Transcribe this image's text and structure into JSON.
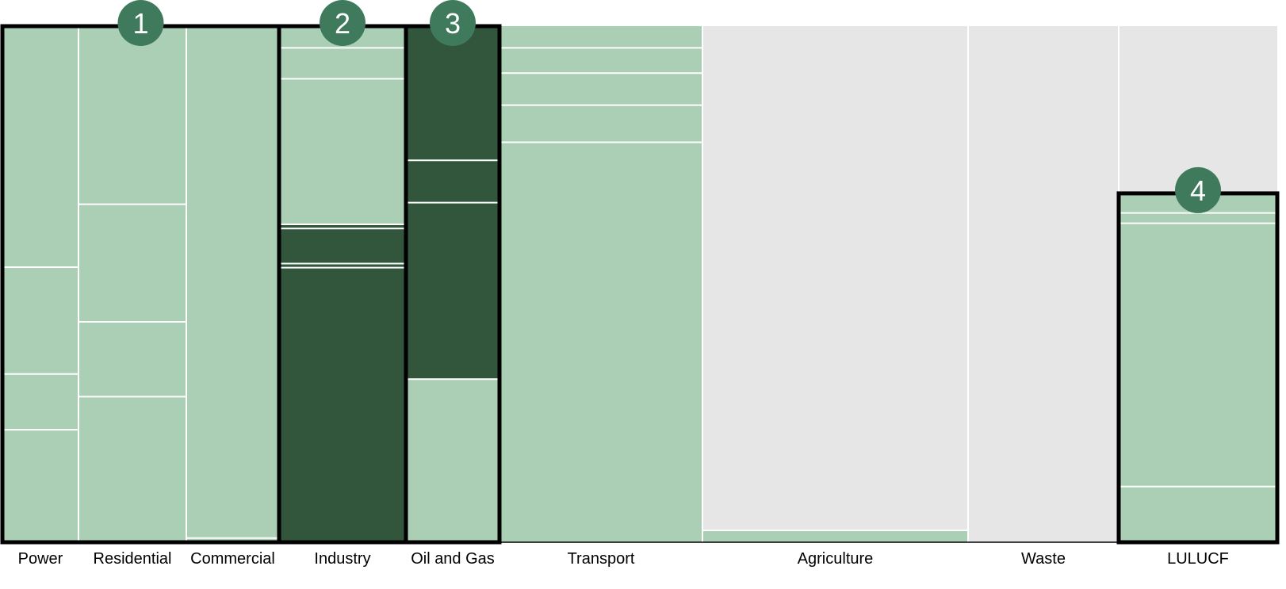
{
  "chart_data": {
    "type": "bar",
    "subtype": "marimekko-stacked",
    "title": "",
    "xlabel": "",
    "ylabel": "",
    "ylim": [
      0,
      1
    ],
    "colors": {
      "light": "#abcfb5",
      "dark": "#32563c",
      "grey": "#e6e6e6",
      "divider": "#ffffff",
      "highlight_border": "#000000",
      "badge": "#3f7a5c"
    },
    "categories": [
      {
        "name": "Power",
        "width": 96,
        "segments": [
          {
            "value": 0.218,
            "shade": "light"
          },
          {
            "value": 0.108,
            "shade": "light"
          },
          {
            "value": 0.207,
            "shade": "light"
          },
          {
            "value": 0.467,
            "shade": "light"
          }
        ]
      },
      {
        "name": "Residential",
        "width": 136,
        "segments": [
          {
            "value": 0.282,
            "shade": "light"
          },
          {
            "value": 0.145,
            "shade": "light"
          },
          {
            "value": 0.228,
            "shade": "light"
          },
          {
            "value": 0.345,
            "shade": "light"
          }
        ]
      },
      {
        "name": "Commercial",
        "width": 117,
        "segments": [
          {
            "value": 0.008,
            "shade": "light"
          },
          {
            "value": 0.992,
            "shade": "light"
          }
        ]
      },
      {
        "name": "Industry",
        "width": 160,
        "segments": [
          {
            "value": 0.532,
            "shade": "dark"
          },
          {
            "value": 0.008,
            "shade": "dark"
          },
          {
            "value": 0.068,
            "shade": "dark"
          },
          {
            "value": 0.008,
            "shade": "dark"
          },
          {
            "value": 0.282,
            "shade": "light"
          },
          {
            "value": 0.06,
            "shade": "light"
          },
          {
            "value": 0.042,
            "shade": "light"
          }
        ]
      },
      {
        "name": "Oil and Gas",
        "width": 118,
        "segments": [
          {
            "value": 0.316,
            "shade": "light"
          },
          {
            "value": 0.342,
            "shade": "dark"
          },
          {
            "value": 0.082,
            "shade": "dark"
          },
          {
            "value": 0.26,
            "shade": "dark"
          }
        ]
      },
      {
        "name": "Transport",
        "width": 256,
        "segments": [
          {
            "value": 0.775,
            "shade": "light"
          },
          {
            "value": 0.072,
            "shade": "light"
          },
          {
            "value": 0.062,
            "shade": "light"
          },
          {
            "value": 0.049,
            "shade": "light"
          },
          {
            "value": 0.042,
            "shade": "light"
          }
        ]
      },
      {
        "name": "Agriculture",
        "width": 335,
        "segments": [
          {
            "value": 0.023,
            "shade": "light"
          },
          {
            "value": 0.977,
            "shade": "grey"
          }
        ]
      },
      {
        "name": "Waste",
        "width": 190,
        "segments": [
          {
            "value": 1.0,
            "shade": "grey"
          }
        ]
      },
      {
        "name": "LULUCF",
        "width": 200,
        "segments": [
          {
            "value": 0.108,
            "shade": "light"
          },
          {
            "value": 0.51,
            "shade": "light"
          },
          {
            "value": 0.02,
            "shade": "light"
          },
          {
            "value": 0.038,
            "shade": "light"
          },
          {
            "value": 0.324,
            "shade": "grey"
          }
        ]
      }
    ],
    "highlights": [
      {
        "label": "1",
        "from": 0,
        "to": 2,
        "top": 1.0
      },
      {
        "label": "2",
        "from": 3,
        "to": 3,
        "top": 1.0
      },
      {
        "label": "3",
        "from": 4,
        "to": 4,
        "top": 1.0
      },
      {
        "label": "4",
        "from": 8,
        "to": 8,
        "top": 0.676
      }
    ]
  }
}
